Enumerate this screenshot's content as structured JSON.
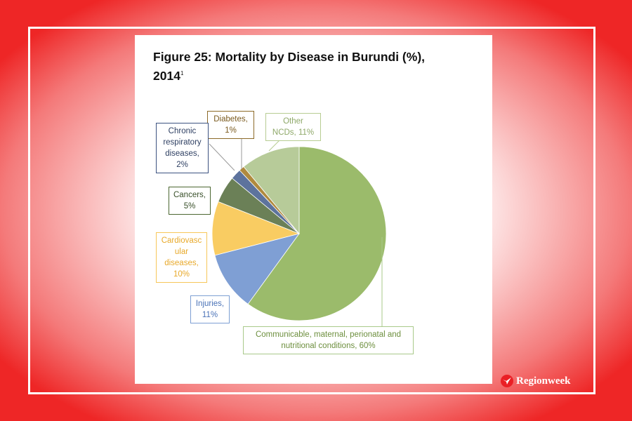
{
  "figure": {
    "title": "Figure 25: Mortality by Disease in Burundi (%), 2014",
    "title_main": "Figure 25: Mortality by Disease in Burundi (%),",
    "title_year": "2014",
    "title_footnote": "1"
  },
  "chart_data": {
    "type": "pie",
    "title": "Figure 25: Mortality by Disease in Burundi (%), 2014",
    "slices": [
      {
        "label": "Communicable, maternal, perionatal and nutritional conditions",
        "value": 60,
        "display_text": "Communicable, maternal, perionatal and nutritional conditions, 60%",
        "color": "#9bbb6b",
        "label_color": "#6d8f3e"
      },
      {
        "label": "Injuries",
        "value": 11,
        "display_text": "Injuries, 11%",
        "color": "#7f9fd4",
        "label_color": "#4a72b7"
      },
      {
        "label": "Cardiovascular diseases",
        "value": 10,
        "display_text": "Cardiovasc ular diseases, 10%",
        "color": "#f9cc62",
        "label_color": "#e8a92a"
      },
      {
        "label": "Cancers",
        "value": 5,
        "display_text": "Cancers, 5%",
        "color": "#6b8057",
        "label_color": "#39502a"
      },
      {
        "label": "Chronic respiratory diseases",
        "value": 2,
        "display_text": "Chronic respiratory diseases, 2%",
        "color": "#5d739d",
        "label_color": "#2e3f62"
      },
      {
        "label": "Diabetes",
        "value": 1,
        "display_text": "Diabetes, 1%",
        "color": "#b08a3e",
        "label_color": "#7a5a1e"
      },
      {
        "label": "Other NCDs",
        "value": 11,
        "display_text": "Other NCDs, 11%",
        "color": "#b7cb99",
        "label_color": "#8ea868"
      }
    ],
    "start": "12 o'clock, clockwise"
  },
  "labels": {
    "communicable": {
      "line1": "Communicable, maternal, perionatal and",
      "line2": "nutritional conditions, 60%"
    },
    "injuries": {
      "line1": "Injuries,",
      "line2": "11%"
    },
    "cardiovascular": {
      "line1": "Cardiovasc",
      "line2": "ular",
      "line3": "diseases,",
      "line4": "10%"
    },
    "cancers": {
      "line1": "Cancers,",
      "line2": "5%"
    },
    "chronic": {
      "line1": "Chronic",
      "line2": "respiratory",
      "line3": "diseases,",
      "line4": "2%"
    },
    "diabetes": {
      "line1": "Diabetes,",
      "line2": "1%"
    },
    "other": {
      "line1": "Other",
      "line2": "NCDs, 11%"
    }
  },
  "watermark": {
    "brand_name": "Regionweek",
    "icon": "bird-logo-icon",
    "color": "#ea1f25"
  },
  "colors": {
    "background_edge": "#ee2626",
    "frame": "#ffffff"
  }
}
